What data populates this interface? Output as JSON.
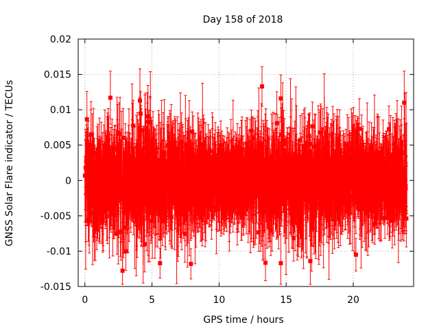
{
  "chart_data": {
    "type": "scatter",
    "title": "Day 158 of 2018",
    "xlabel": "GPS time / hours",
    "ylabel": "GNSS Solar Flare indicator / TECUs",
    "xlim": [
      -0.5,
      24.5
    ],
    "ylim": [
      -0.015,
      0.02
    ],
    "x_ticks": [
      0,
      5,
      10,
      15,
      20
    ],
    "x_tick_labels": [
      "0",
      "5",
      "10",
      "15",
      "20"
    ],
    "y_ticks": [
      -0.015,
      -0.01,
      -0.005,
      0,
      0.005,
      0.01,
      0.015,
      0.02
    ],
    "y_tick_labels": [
      "-0.015",
      "-0.01",
      "-0.005",
      "0",
      "0.005",
      "0.01",
      "0.015",
      "0.02"
    ],
    "grid": true,
    "series": [
      {
        "name": "solar flare indicator",
        "color": "#ff0000",
        "marker": "square",
        "error_bars": true,
        "x_start": 0,
        "x_end": 24,
        "n_points": 2880,
        "mean": 0,
        "noise_std_by_hour": [
          {
            "hours": [
              0,
              9
            ],
            "std": 0.0036
          },
          {
            "hours": [
              9,
              12
            ],
            "std": 0.0022
          },
          {
            "hours": [
              12,
              19
            ],
            "std": 0.0035
          },
          {
            "hours": [
              19,
              24
            ],
            "std": 0.0029
          }
        ],
        "error_half_width": [
          0.002,
          0.0045
        ],
        "notable_points": [
          {
            "x": 1.9,
            "y": 0.0117
          },
          {
            "x": 4.1,
            "y": 0.0113
          },
          {
            "x": 13.2,
            "y": 0.0133
          },
          {
            "x": 14.6,
            "y": 0.0116
          },
          {
            "x": 5.6,
            "y": -0.0117
          },
          {
            "x": 7.9,
            "y": -0.0118
          },
          {
            "x": 14.6,
            "y": -0.0117
          },
          {
            "x": 16.8,
            "y": -0.0114
          },
          {
            "x": 20.2,
            "y": -0.0105
          },
          {
            "x": 23.8,
            "y": 0.011
          }
        ]
      }
    ]
  }
}
